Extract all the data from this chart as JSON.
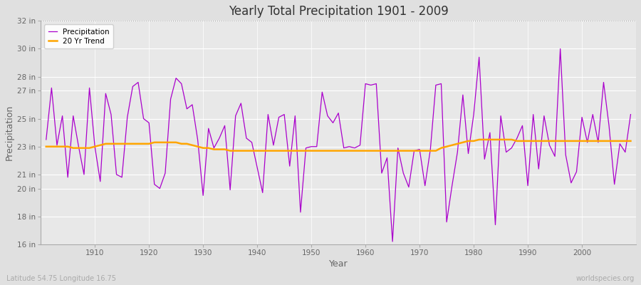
{
  "title": "Yearly Total Precipitation 1901 - 2009",
  "xlabel": "Year",
  "ylabel": "Precipitation",
  "start_year": 1901,
  "end_year": 2009,
  "subtitle_left": "Latitude 54.75 Longitude 16.75",
  "subtitle_right": "worldspecies.org",
  "ylim": [
    16,
    32
  ],
  "yticks": [
    16,
    18,
    20,
    21,
    23,
    25,
    27,
    28,
    30,
    32
  ],
  "ytick_labels": [
    "16 in",
    "18 in",
    "20 in",
    "21 in",
    "23 in",
    "25 in",
    "27 in",
    "28 in",
    "30 in",
    "32 in"
  ],
  "precipitation_color": "#AA00CC",
  "trend_color": "#FFA500",
  "background_color": "#E0E0E0",
  "plot_bg_color": "#E8E8E8",
  "grid_color": "#FFFFFF",
  "precipitation": [
    23.5,
    27.2,
    23.1,
    25.2,
    20.8,
    25.2,
    23.0,
    21.0,
    27.2,
    23.0,
    20.5,
    26.8,
    25.3,
    21.0,
    20.8,
    25.1,
    27.3,
    27.6,
    25.0,
    24.7,
    20.3,
    20.0,
    21.1,
    26.4,
    27.9,
    27.5,
    25.7,
    26.0,
    23.5,
    19.5,
    24.3,
    22.9,
    23.6,
    24.5,
    19.9,
    25.2,
    26.1,
    23.6,
    23.3,
    21.5,
    19.7,
    25.3,
    23.1,
    25.1,
    25.3,
    21.6,
    25.2,
    18.3,
    22.9,
    23.0,
    23.0,
    26.9,
    25.2,
    24.7,
    25.4,
    22.9,
    23.0,
    22.9,
    23.1,
    27.5,
    27.4,
    27.5,
    21.1,
    22.2,
    16.2,
    22.9,
    21.1,
    20.1,
    22.7,
    22.8,
    20.2,
    22.8,
    27.4,
    27.5,
    17.6,
    20.2,
    22.6,
    26.7,
    22.5,
    25.3,
    29.4,
    22.1,
    24.0,
    17.4,
    25.2,
    22.6,
    22.9,
    23.6,
    24.5,
    20.2,
    25.3,
    21.4,
    25.2,
    23.1,
    22.3,
    30.0,
    22.4,
    20.4,
    21.2,
    25.1,
    23.3,
    25.3,
    23.3,
    27.6,
    24.5,
    20.3,
    23.2,
    22.6,
    25.3
  ],
  "trend": [
    23.0,
    23.0,
    23.0,
    23.0,
    23.0,
    22.9,
    22.9,
    22.9,
    22.9,
    23.0,
    23.1,
    23.2,
    23.2,
    23.2,
    23.2,
    23.2,
    23.2,
    23.2,
    23.2,
    23.2,
    23.3,
    23.3,
    23.3,
    23.3,
    23.3,
    23.2,
    23.2,
    23.1,
    23.0,
    22.9,
    22.9,
    22.8,
    22.8,
    22.8,
    22.7,
    22.7,
    22.7,
    22.7,
    22.7,
    22.7,
    22.7,
    22.7,
    22.7,
    22.7,
    22.7,
    22.7,
    22.7,
    22.7,
    22.7,
    22.7,
    22.7,
    22.7,
    22.7,
    22.7,
    22.7,
    22.7,
    22.7,
    22.7,
    22.7,
    22.7,
    22.7,
    22.7,
    22.7,
    22.7,
    22.7,
    22.7,
    22.7,
    22.7,
    22.7,
    22.7,
    22.7,
    22.7,
    22.7,
    22.9,
    23.0,
    23.1,
    23.2,
    23.3,
    23.4,
    23.4,
    23.5,
    23.5,
    23.5,
    23.5,
    23.5,
    23.5,
    23.5,
    23.4,
    23.4,
    23.4,
    23.4,
    23.4,
    23.4,
    23.4,
    23.4,
    23.4,
    23.4,
    23.4,
    23.4,
    23.4,
    23.4,
    23.4,
    23.4,
    23.4,
    23.4,
    23.4,
    23.4,
    23.4,
    23.4
  ]
}
